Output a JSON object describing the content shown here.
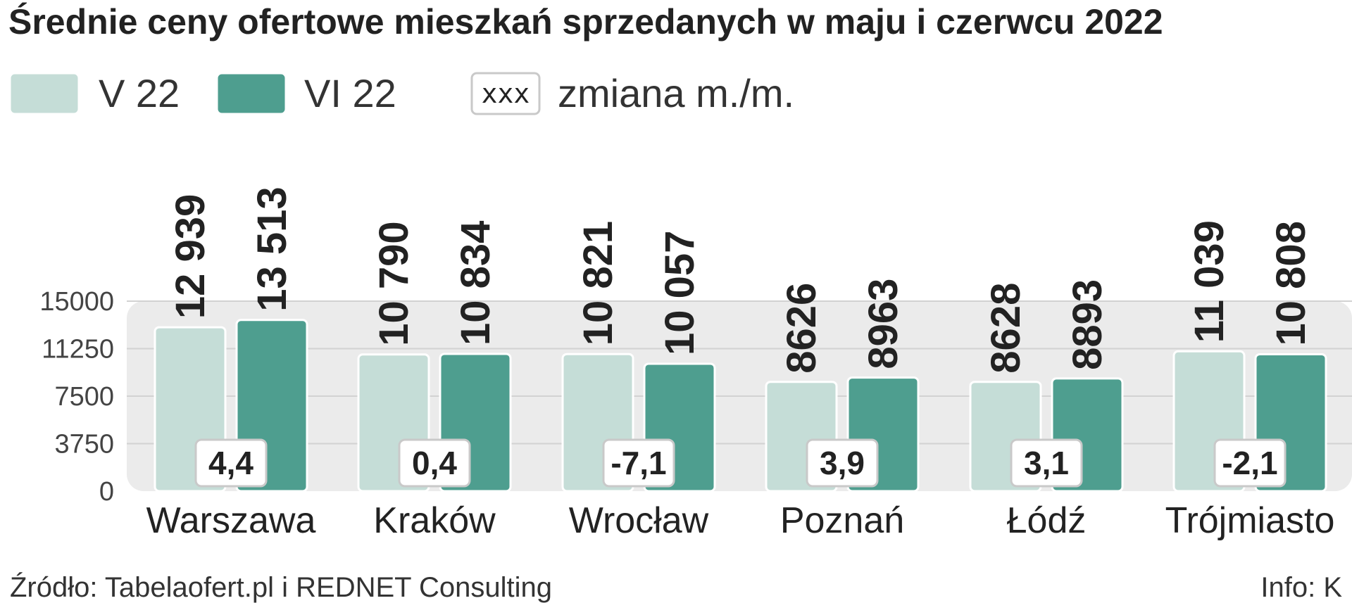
{
  "title": "Średnie ceny ofertowe mieszkań sprzedanych w maju i czerwcu 2022",
  "legend": {
    "series_1": "V 22",
    "series_2": "VI 22",
    "change_box": "xxx",
    "change_label": "zmiana m./m."
  },
  "source": "Źródło: Tabelaofert.pl i REDNET Consulting",
  "credit": "Info: K",
  "colors": {
    "series_1": "#c5ddd7",
    "series_2": "#4e9e8f",
    "plot_background": "#ebebeb",
    "gridline": "#d2d2d2",
    "text": "#222222"
  },
  "chart_data": {
    "type": "bar",
    "title": "Średnie ceny ofertowe mieszkań sprzedanych w maju i czerwcu 2022",
    "categories": [
      "Warszawa",
      "Kraków",
      "Wrocław",
      "Poznań",
      "Łódź",
      "Trójmiasto"
    ],
    "series": [
      {
        "name": "V 22",
        "values": [
          12939,
          10790,
          10821,
          8626,
          8628,
          11039
        ],
        "labels": [
          "12 939",
          "10 790",
          "10 821",
          "8626",
          "8628",
          "11 039"
        ]
      },
      {
        "name": "VI 22",
        "values": [
          13513,
          10834,
          10057,
          8963,
          8893,
          10808
        ],
        "labels": [
          "13 513",
          "10 834",
          "10 057",
          "8963",
          "8893",
          "10 808"
        ]
      }
    ],
    "change_mm": [
      "4,4",
      "0,4",
      "-7,1",
      "3,9",
      "3,1",
      "-2,1"
    ],
    "ylim": [
      0,
      15000
    ],
    "yticks": [
      0,
      3750,
      7500,
      11250,
      15000
    ],
    "ytick_labels": [
      "0",
      "3750",
      "7500",
      "11250",
      "15000"
    ],
    "grid": true,
    "legend_position": "top-left"
  }
}
